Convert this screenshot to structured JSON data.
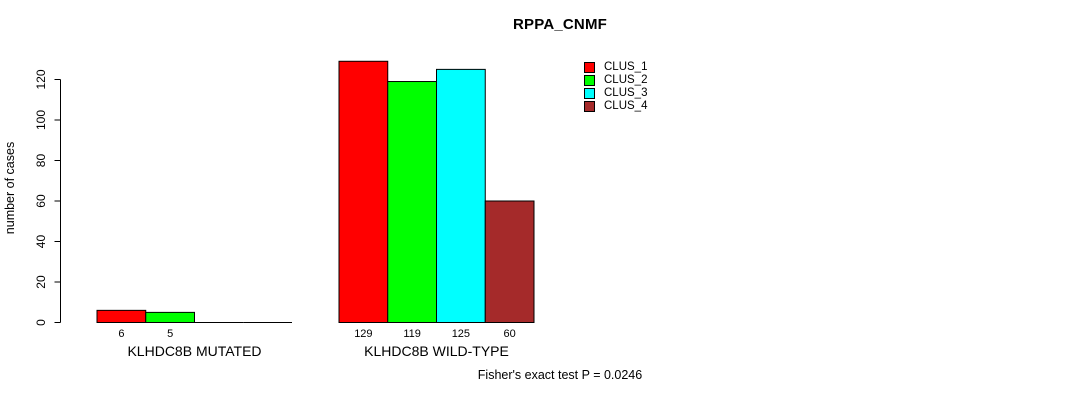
{
  "chart_data": {
    "type": "bar",
    "title": "RPPA_CNMF",
    "ylabel": "number of cases",
    "xlabel": "",
    "ylim": [
      0,
      129
    ],
    "yticks": [
      0,
      20,
      40,
      60,
      80,
      100,
      120
    ],
    "grid": false,
    "legend_position": "top-right",
    "categories": [
      "KLHDC8B MUTATED",
      "KLHDC8B WILD-TYPE"
    ],
    "series": [
      {
        "name": "CLUS_1",
        "color": "#ff0000",
        "values": [
          6,
          129
        ]
      },
      {
        "name": "CLUS_2",
        "color": "#00ff00",
        "values": [
          5,
          119
        ]
      },
      {
        "name": "CLUS_3",
        "color": "#00ffff",
        "values": [
          0,
          125
        ]
      },
      {
        "name": "CLUS_4",
        "color": "#a52a2a",
        "values": [
          0,
          60
        ]
      }
    ],
    "bar_value_labels": {
      "KLHDC8B MUTATED": [
        "6",
        "5",
        "",
        ""
      ],
      "KLHDC8B WILD-TYPE": [
        "129",
        "119",
        "125",
        "60"
      ]
    },
    "annotation": "Fisher's exact test P = 0.0246"
  }
}
